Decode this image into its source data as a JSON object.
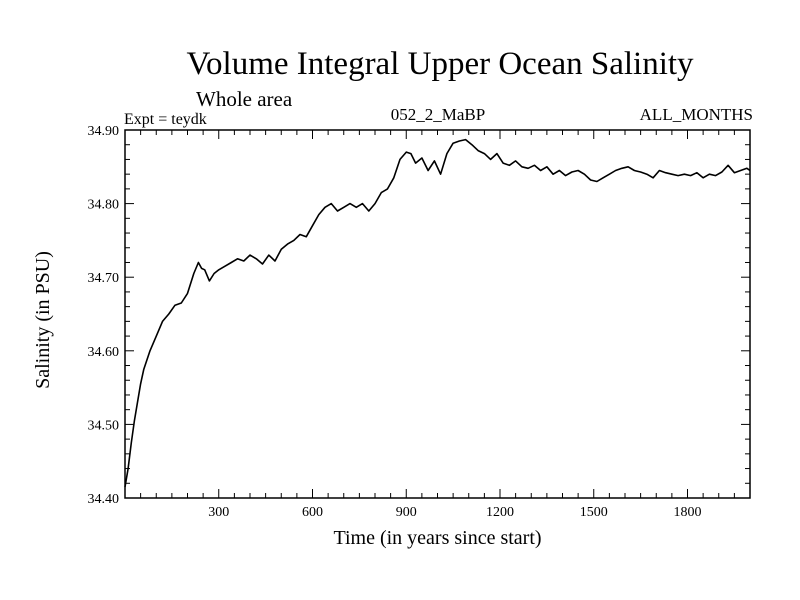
{
  "chart_data": {
    "type": "line",
    "title": "Volume Integral Upper Ocean Salinity",
    "subtitle": "Whole area",
    "top_left": "Expt = teydk",
    "top_center": "052_2_MaBP",
    "top_right": "ALL_MONTHS",
    "xlabel": "Time (in years since start)",
    "ylabel": "Salinity (in PSU)",
    "xlim": [
      0,
      2000
    ],
    "ylim": [
      34.4,
      34.9
    ],
    "x_ticks": [
      300,
      600,
      900,
      1200,
      1500,
      1800
    ],
    "x_tick_labels": [
      "300",
      "600",
      "900",
      "1200",
      "1500",
      "1800"
    ],
    "y_ticks": [
      34.4,
      34.5,
      34.6,
      34.7,
      34.8,
      34.9
    ],
    "y_tick_labels": [
      "34.40",
      "34.50",
      "34.60",
      "34.70",
      "34.80",
      "34.90"
    ],
    "grid": false,
    "series": [
      {
        "name": "Salinity",
        "color": "#000000",
        "x": [
          0,
          10,
          20,
          30,
          40,
          50,
          60,
          80,
          100,
          120,
          140,
          160,
          180,
          200,
          220,
          235,
          245,
          255,
          270,
          285,
          300,
          320,
          340,
          360,
          380,
          400,
          420,
          440,
          460,
          480,
          500,
          520,
          540,
          560,
          580,
          600,
          620,
          640,
          660,
          680,
          700,
          720,
          740,
          760,
          780,
          800,
          820,
          840,
          860,
          880,
          900,
          915,
          930,
          950,
          970,
          990,
          1010,
          1030,
          1050,
          1070,
          1090,
          1110,
          1130,
          1150,
          1170,
          1190,
          1210,
          1230,
          1250,
          1270,
          1290,
          1310,
          1330,
          1350,
          1370,
          1390,
          1410,
          1430,
          1450,
          1470,
          1490,
          1510,
          1530,
          1550,
          1570,
          1590,
          1610,
          1630,
          1650,
          1670,
          1690,
          1710,
          1730,
          1750,
          1770,
          1790,
          1810,
          1830,
          1850,
          1870,
          1890,
          1910,
          1930,
          1950,
          1970,
          1990,
          2000
        ],
        "values": [
          34.415,
          34.44,
          34.475,
          34.505,
          34.53,
          34.555,
          34.575,
          34.6,
          34.62,
          34.64,
          34.65,
          34.662,
          34.665,
          34.678,
          34.705,
          34.72,
          34.712,
          34.71,
          34.695,
          34.705,
          34.71,
          34.715,
          34.72,
          34.725,
          34.722,
          34.73,
          34.725,
          34.718,
          34.73,
          34.722,
          34.738,
          34.745,
          34.75,
          34.758,
          34.755,
          34.77,
          34.785,
          34.795,
          34.8,
          34.79,
          34.795,
          34.8,
          34.795,
          34.8,
          34.79,
          34.8,
          34.815,
          34.82,
          34.835,
          34.86,
          34.87,
          34.868,
          34.855,
          34.862,
          34.845,
          34.858,
          34.84,
          34.868,
          34.882,
          34.885,
          34.887,
          34.88,
          34.872,
          34.868,
          34.86,
          34.868,
          34.855,
          34.852,
          34.858,
          34.85,
          34.848,
          34.852,
          34.845,
          34.85,
          34.84,
          34.845,
          34.838,
          34.843,
          34.845,
          34.84,
          34.832,
          34.83,
          34.835,
          34.84,
          34.845,
          34.848,
          34.85,
          34.845,
          34.843,
          34.84,
          34.835,
          34.845,
          34.842,
          34.84,
          34.838,
          34.84,
          34.838,
          34.842,
          34.835,
          34.84,
          34.838,
          34.843,
          34.852,
          34.842,
          34.845,
          34.848,
          34.845
        ]
      }
    ]
  }
}
